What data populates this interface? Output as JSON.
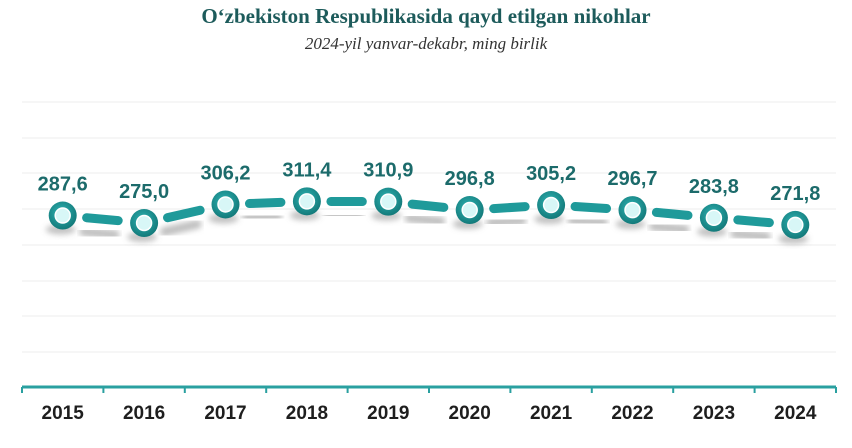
{
  "chart_data": {
    "type": "line",
    "title": "O‘zbekiston Respublikasida qayd etilgan nikohlar",
    "subtitle": "2024-yil yanvar-dekabr, ming birlik",
    "categories": [
      "2015",
      "2016",
      "2017",
      "2018",
      "2019",
      "2020",
      "2021",
      "2022",
      "2023",
      "2024"
    ],
    "values": [
      287.6,
      275.0,
      306.2,
      311.4,
      310.9,
      296.8,
      305.2,
      296.7,
      283.8,
      271.8
    ],
    "value_labels": [
      "287,6",
      "275,0",
      "306,2",
      "311,4",
      "310,9",
      "296,8",
      "305,2",
      "296,7",
      "283,8",
      "271,8"
    ],
    "xlabel": "",
    "ylabel": "",
    "grid": true,
    "legend": "none",
    "colors": {
      "line": "#1f9a9a",
      "marker_fill": "#d8f7f7",
      "axis": "#2aa0a0",
      "label": "#1c6b6b"
    }
  }
}
